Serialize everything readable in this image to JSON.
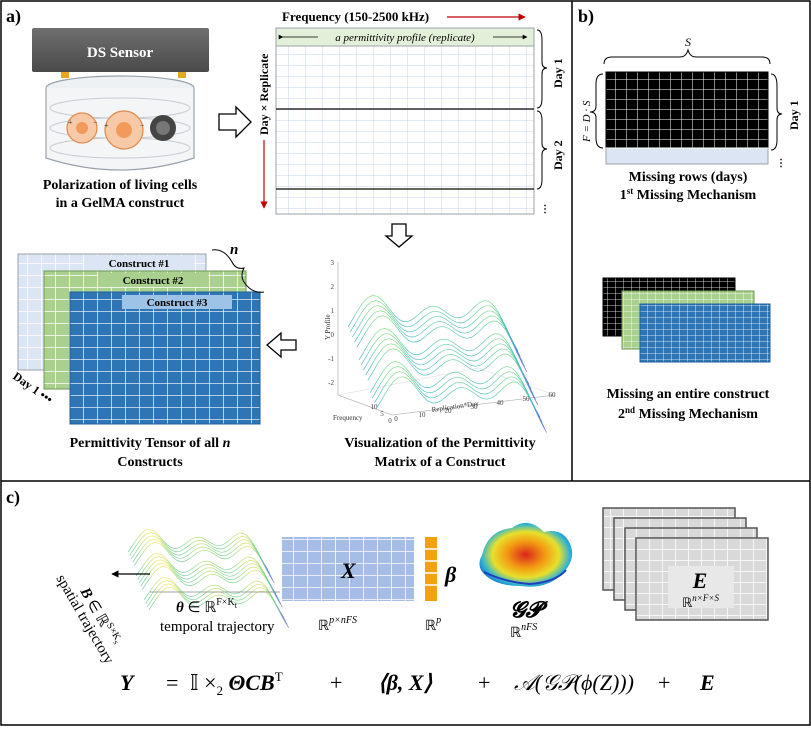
{
  "panel_a": {
    "label": "a)",
    "sensor_label": "DS Sensor",
    "caption_line1": "Polarization of living cells",
    "caption_line2": "in a GelMA construct",
    "freq_label": "Frequency (150-2500 kHz)",
    "profile_label": "a permittivity profile (replicate)",
    "axis_label": "Day × Replicate",
    "day1": "Day 1",
    "day2": "Day 2",
    "constructs": [
      "Construct #1",
      "Construct #2",
      "Construct #3"
    ],
    "n_label": "n",
    "day_dots": "Day 1 •••",
    "tensor_caption_line1": "Permittivity Tensor of all n",
    "tensor_caption_line2": "Constructs",
    "viz_caption_line1": "Visualization of the Permittivity",
    "viz_caption_line2": "Matrix of a Construct",
    "plot": {
      "ylabel": "Y Profile",
      "xlabel_front": "Frequency",
      "xlabel_side": "Replication*Day",
      "y_ticks": [
        "3",
        "2",
        "1",
        "0",
        "-1",
        "-2"
      ],
      "freq_ticks": [
        "0",
        "5",
        "10"
      ],
      "rep_ticks": [
        "0",
        "10",
        "20",
        "30",
        "40",
        "50",
        "60"
      ]
    }
  },
  "panel_b": {
    "label": "b)",
    "s_label": "S",
    "f_label": "F = D · S",
    "day1": "Day 1",
    "cap1_line1": "Missing rows (days)",
    "cap1_line2_sup": "st",
    "cap1_line2_pre": "1",
    "cap1_line2_post": " Missing Mechanism",
    "cap2_line1": "Missing an entire construct",
    "cap2_line2_pre": "2",
    "cap2_line2_sup": "nd",
    "cap2_line2_post": " Missing Mechanism"
  },
  "panel_c": {
    "label": "c)",
    "b_label": "B ∈ ℝ",
    "b_sup": "S×K",
    "b_sub": "s",
    "spatial_label": "spatial trajectory",
    "theta_label": "θ ∈ ℝ",
    "theta_sup": "F×K",
    "theta_sub": "t",
    "temporal_label": "temporal trajectory",
    "x_label": "X",
    "x_dim": "p×nFS",
    "beta_label": "β",
    "beta_dim": "p",
    "gp_label": "𝒢𝒫",
    "gp_dim": "nFS",
    "e_label": "E",
    "e_dim": "n×F×S",
    "real": "ℝ",
    "eq_y": "Y",
    "eq_eq": "=",
    "eq_term1": "𝕀 ×",
    "eq_term1_sub": "2",
    "eq_term1b": " ΘCB",
    "eq_term1_sup": "T",
    "eq_plus": "+",
    "eq_term2": "⟨β, X⟩",
    "eq_term3": "𝒜(𝒢𝒫(ϕ(Z)))",
    "eq_term4": "E"
  },
  "colors": {
    "light_blue": "#c9d9f2",
    "green": "#a9d08e",
    "dark_blue": "#2e75b6",
    "orange": "#f2a20c",
    "black": "#000000",
    "red": "#c00000"
  }
}
